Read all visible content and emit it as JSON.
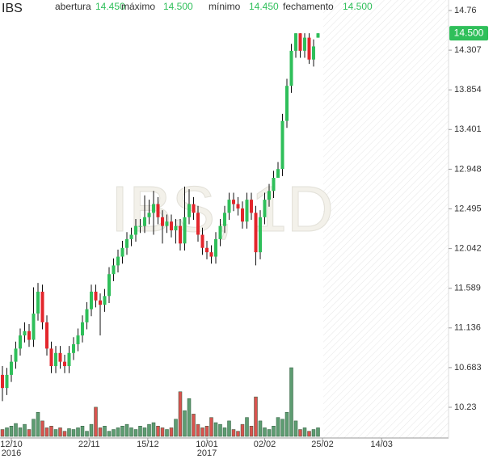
{
  "chart_data": {
    "type": "candlestick",
    "title": "IBS",
    "watermark": "IBS, 1D",
    "header": [
      {
        "label": "abertura",
        "value": {
          "value": 14.45,
          "label": "14.450"
        }
      },
      {
        "label": "máximo",
        "value": {
          "value": 14.5,
          "label": "14.500"
        }
      },
      {
        "label": "mínimo",
        "value": {
          "value": 14.45,
          "label": "14.450"
        }
      },
      {
        "label": "fechamento",
        "value": {
          "value": 14.5,
          "label": "14.500"
        }
      }
    ],
    "price_tag": {
      "value": 14.5,
      "label": "14.500"
    },
    "up_color": "#2fbf5a",
    "down_color": "#e3262c",
    "ylim": [
      10.23,
      14.76
    ],
    "yticks": [
      14.76,
      14.307,
      13.854,
      13.401,
      12.948,
      12.495,
      12.042,
      11.589,
      11.136,
      10.683,
      10.23
    ],
    "xticks": [
      {
        "value": 2,
        "label": "12/10",
        "year": "2016"
      },
      {
        "value": 19.5,
        "label": "22/11"
      },
      {
        "value": 32.7,
        "label": "15/12"
      },
      {
        "value": 46,
        "label": "10/01",
        "year": "2017"
      },
      {
        "value": 59,
        "label": "02/02"
      },
      {
        "value": 72,
        "label": "25/02"
      },
      {
        "value": 85.3,
        "label": "14/03"
      }
    ],
    "open": [
      10.6,
      10.45,
      10.6,
      10.75,
      10.9,
      11.05,
      11.1,
      11.0,
      11.3,
      11.55,
      11.2,
      10.9,
      10.7,
      10.85,
      10.75,
      10.7,
      10.85,
      10.95,
      11.05,
      11.2,
      11.35,
      11.55,
      11.45,
      11.4,
      11.5,
      11.75,
      11.85,
      11.95,
      12.05,
      12.15,
      12.2,
      12.3,
      12.3,
      12.4,
      12.45,
      12.55,
      12.4,
      12.3,
      12.35,
      12.25,
      12.3,
      12.1,
      12.4,
      12.55,
      12.45,
      12.2,
      12.05,
      12.0,
      11.95,
      12.15,
      12.3,
      12.45,
      12.6,
      12.55,
      12.5,
      12.35,
      12.6,
      12.45,
      12.0,
      12.4,
      12.6,
      12.7,
      12.85,
      12.95,
      13.5,
      13.9,
      14.3,
      14.5,
      14.3,
      14.45,
      14.2,
      14.45
    ],
    "high": [
      10.7,
      10.68,
      10.83,
      10.98,
      11.13,
      11.2,
      11.18,
      11.6,
      11.65,
      11.63,
      11.28,
      10.98,
      10.93,
      10.93,
      10.83,
      10.93,
      11.03,
      11.13,
      11.28,
      11.43,
      11.63,
      11.63,
      11.53,
      11.58,
      11.83,
      11.93,
      12.03,
      12.13,
      12.23,
      12.28,
      12.38,
      12.38,
      12.65,
      12.6,
      12.7,
      12.63,
      12.48,
      12.43,
      12.43,
      12.38,
      12.38,
      12.75,
      12.72,
      12.63,
      12.53,
      12.28,
      12.13,
      12.08,
      12.23,
      12.38,
      12.53,
      12.68,
      12.68,
      12.63,
      12.58,
      12.68,
      12.68,
      12.53,
      12.48,
      12.68,
      12.78,
      12.93,
      13.03,
      13.58,
      13.98,
      14.38,
      14.5,
      14.5,
      14.5,
      14.5,
      14.43,
      14.5
    ],
    "low": [
      10.3,
      10.37,
      10.52,
      10.67,
      10.82,
      10.97,
      10.92,
      10.92,
      11.22,
      11.12,
      10.82,
      10.62,
      10.62,
      10.67,
      10.62,
      10.62,
      10.77,
      10.87,
      10.97,
      11.12,
      11.27,
      11.37,
      11.05,
      11.32,
      11.42,
      11.67,
      11.77,
      11.87,
      11.97,
      12.07,
      12.12,
      12.22,
      12.22,
      12.32,
      12.2,
      12.32,
      12.1,
      12.22,
      12.17,
      12.1,
      12.02,
      12.02,
      12.32,
      12.37,
      12.12,
      11.97,
      11.92,
      11.87,
      11.87,
      12.07,
      12.22,
      12.37,
      12.47,
      12.42,
      12.27,
      12.27,
      12.37,
      11.85,
      11.92,
      12.32,
      12.52,
      12.62,
      12.87,
      12.87,
      13.42,
      13.82,
      14.22,
      14.22,
      14.22,
      14.15,
      14.12,
      14.45
    ],
    "close": [
      10.45,
      10.6,
      10.75,
      10.9,
      11.05,
      11.1,
      11.0,
      11.3,
      11.55,
      11.2,
      10.9,
      10.7,
      10.85,
      10.75,
      10.7,
      10.85,
      10.95,
      11.05,
      11.2,
      11.35,
      11.55,
      11.45,
      11.4,
      11.5,
      11.75,
      11.85,
      11.95,
      12.05,
      12.15,
      12.2,
      12.3,
      12.3,
      12.4,
      12.45,
      12.55,
      12.4,
      12.3,
      12.35,
      12.25,
      12.3,
      12.1,
      12.4,
      12.55,
      12.45,
      12.2,
      12.05,
      12.0,
      11.95,
      12.15,
      12.3,
      12.45,
      12.6,
      12.55,
      12.5,
      12.35,
      12.6,
      12.45,
      12.0,
      12.4,
      12.6,
      12.7,
      12.85,
      12.95,
      13.5,
      13.9,
      14.3,
      14.5,
      14.3,
      14.45,
      14.2,
      14.35,
      14.5
    ],
    "volume": [
      8,
      10,
      12,
      15,
      10,
      14,
      8,
      20,
      28,
      18,
      10,
      12,
      8,
      10,
      6,
      9,
      8,
      10,
      12,
      6,
      14,
      34,
      10,
      12,
      6,
      8,
      10,
      12,
      14,
      10,
      8,
      12,
      10,
      14,
      16,
      12,
      10,
      8,
      10,
      20,
      52,
      30,
      44,
      26,
      14,
      10,
      12,
      22,
      16,
      14,
      10,
      18,
      8,
      6,
      14,
      22,
      12,
      46,
      18,
      10,
      8,
      12,
      22,
      20,
      28,
      80,
      18,
      8,
      10,
      6,
      8,
      10
    ]
  }
}
